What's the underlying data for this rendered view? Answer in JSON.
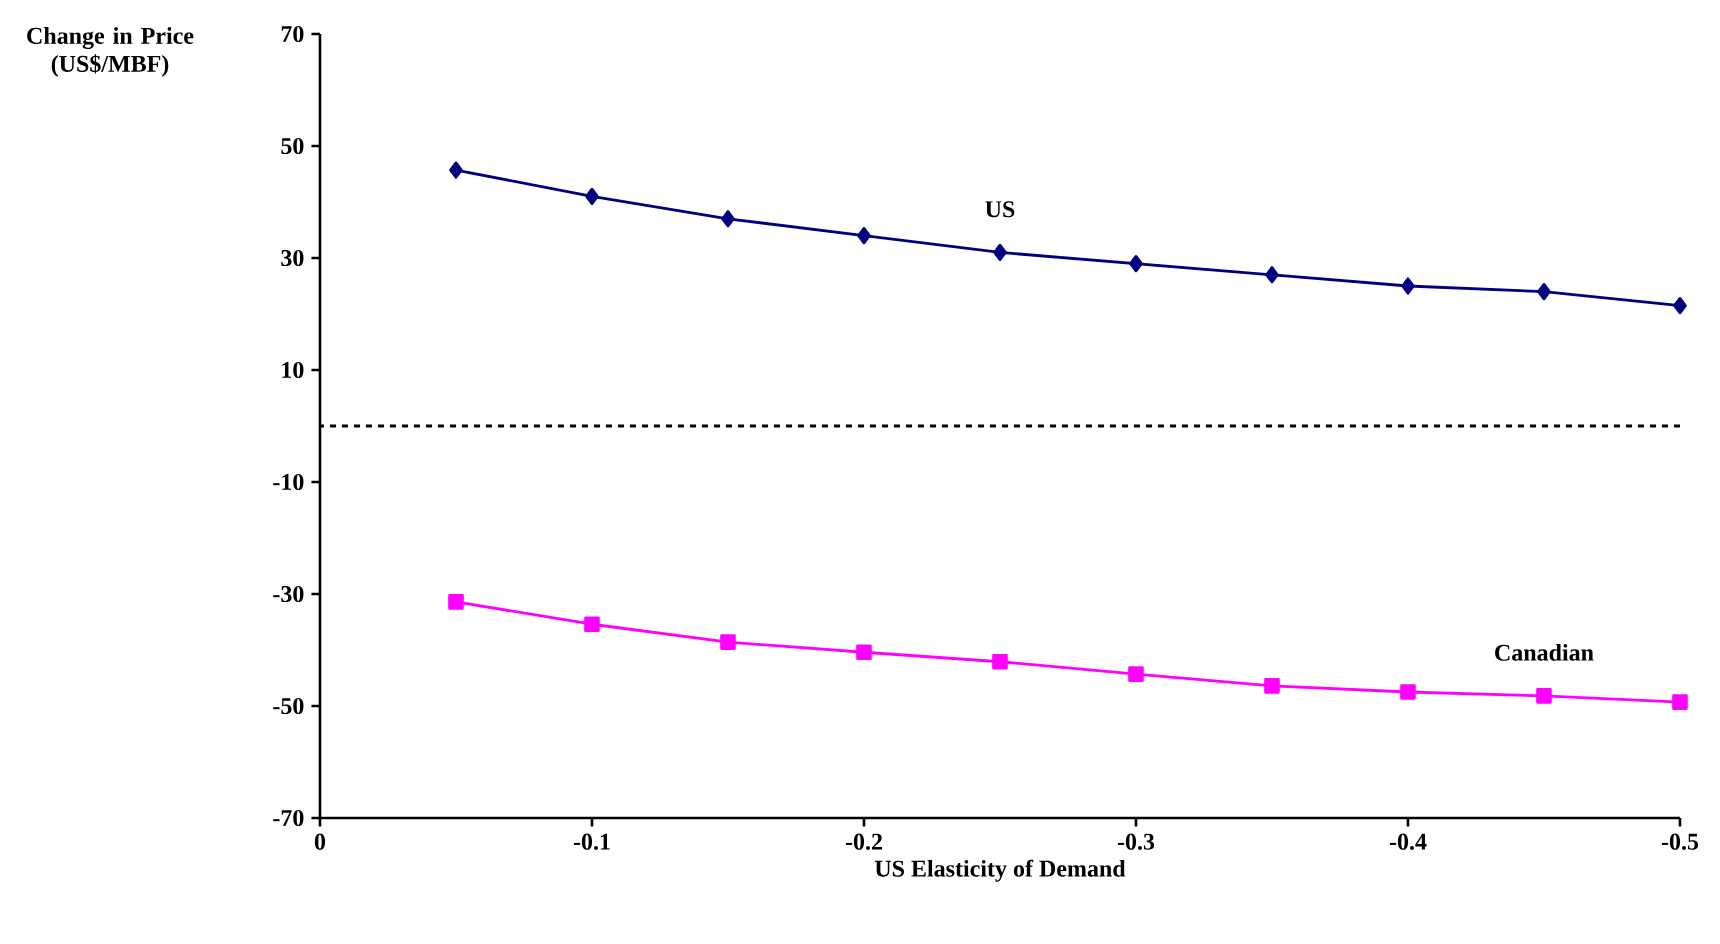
{
  "chart_data": {
    "type": "line",
    "xlabel": "US Elasticity of Demand",
    "ylabel": "Change in Price (US$/MBF)",
    "x": [
      -0.05,
      -0.1,
      -0.15,
      -0.2,
      -0.25,
      -0.3,
      -0.35,
      -0.4,
      -0.45,
      -0.5
    ],
    "series": [
      {
        "name": "US",
        "color": "#000080",
        "marker": "diamond",
        "values": [
          45.7,
          41,
          37,
          34,
          31,
          29,
          27,
          25,
          24,
          21.5
        ]
      },
      {
        "name": "Canadian",
        "color": "#ff00ff",
        "marker": "square",
        "values": [
          -31.4,
          -35.4,
          -38.6,
          -40.4,
          -42.1,
          -44.3,
          -46.4,
          -47.5,
          -48.2,
          -49.3
        ]
      }
    ],
    "xlim": [
      0,
      -0.5
    ],
    "xticks": [
      0,
      -0.1,
      -0.2,
      -0.3,
      -0.4,
      -0.5
    ],
    "ylim": [
      -70,
      70
    ],
    "yticks": [
      -70,
      -50,
      -30,
      -10,
      10,
      30,
      50,
      70
    ],
    "ref_lines": [
      {
        "axis": "y",
        "value": 0,
        "color": "#000000",
        "line_style": "dashed"
      }
    ]
  }
}
